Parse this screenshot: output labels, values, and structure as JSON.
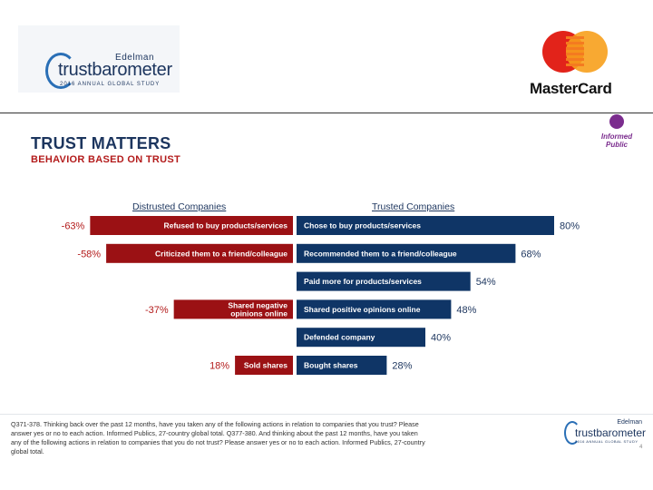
{
  "header": {
    "edelman": {
      "name": "Edelman",
      "word": "trustbarometer",
      "sub": "2016 ANNUAL GLOBAL STUDY"
    },
    "mastercard": {
      "word": "MasterCard"
    },
    "informed_public": "Informed Public"
  },
  "title": "TRUST MATTERS",
  "subtitle": "BEHAVIOR BASED ON TRUST",
  "colors": {
    "distrusted": "#9b1114",
    "trusted": "#0f3566",
    "title": "#1c355e",
    "subtitle": "#b31b1b"
  },
  "chart_data": {
    "type": "bar",
    "title": "BEHAVIOR BASED ON TRUST",
    "series": [
      {
        "name": "Distrusted Companies",
        "items": [
          {
            "label": "Refused to buy products/services",
            "value": -63,
            "display": "-63%"
          },
          {
            "label": "Criticized them to a friend/colleague",
            "value": -58,
            "display": "-58%"
          },
          null,
          {
            "label": "Shared negative opinions online",
            "value": -37,
            "display": "-37%"
          },
          null,
          {
            "label": "Sold shares",
            "value": 18,
            "display": "18%"
          }
        ]
      },
      {
        "name": "Trusted Companies",
        "items": [
          {
            "label": "Chose to buy products/services",
            "value": 80,
            "display": "80%"
          },
          {
            "label": "Recommended them to a friend/colleague",
            "value": 68,
            "display": "68%"
          },
          {
            "label": "Paid more for products/services",
            "value": 54,
            "display": "54%"
          },
          {
            "label": "Shared positive opinions online",
            "value": 48,
            "display": "48%"
          },
          {
            "label": "Defended company",
            "value": 40,
            "display": "40%"
          },
          {
            "label": "Bought shares",
            "value": 28,
            "display": "28%"
          }
        ]
      }
    ],
    "xlim": [
      0,
      100
    ]
  },
  "footnote": "Q371-378. Thinking back over the past 12 months, have you taken any of the following actions in relation to companies that you trust? Please answer yes or no to each action. Informed Publics, 27-country global total. Q377-380. And thinking about the past 12 months, have you taken any of the following actions in relation to companies that you do not trust? Please answer yes or no to each action. Informed Publics, 27-country global total.",
  "footer": {
    "name": "Edelman",
    "word": "trustbarometer",
    "sub": "2016 ANNUAL GLOBAL STUDY",
    "page": "4"
  }
}
